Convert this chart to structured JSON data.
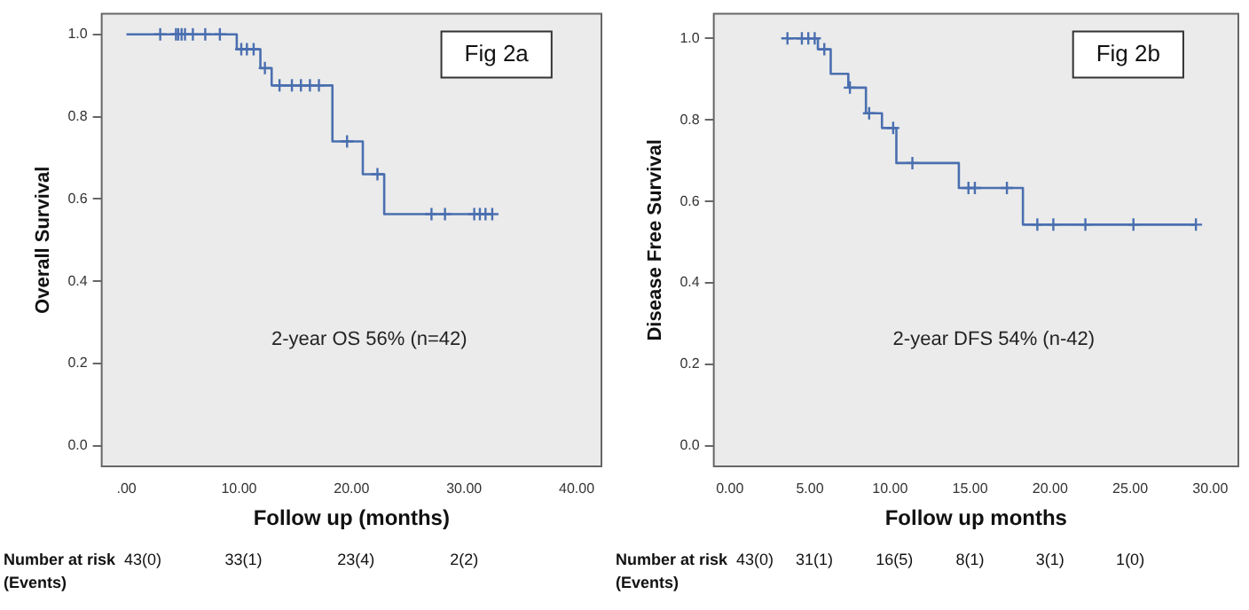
{
  "chart_data": [
    {
      "type": "step",
      "xlabel": "Follow up (months)",
      "ylabel": "Overall Survival",
      "annotations": [
        "Fig 2a",
        "2-year OS 56% (n=42)",
        "Number at risk",
        "(Events)",
        "43(0)",
        "33(1)",
        "23(4)",
        "2(2)"
      ],
      "series": [
        {
          "color": "#4a6fb0",
          "x": [
            0,
            9.8,
            11.9,
            12.9,
            18.3,
            21.0,
            22.9,
            32.5
          ],
          "values": [
            1.0,
            0.964,
            0.918,
            0.876,
            0.74,
            0.66,
            0.563,
            0.563
          ]
        },
        {
          "type": "scatter",
          "marker": "cross",
          "color": "#4a6fb0",
          "x": [
            3.0,
            4.4,
            4.6,
            4.9,
            5.2,
            5.9,
            7.0,
            8.3,
            10.2,
            10.7,
            11.3,
            12.3,
            13.6,
            14.7,
            15.5,
            16.3,
            17.1,
            19.6,
            22.3,
            27.1,
            28.3,
            30.9,
            31.4,
            31.9,
            32.5
          ],
          "values": [
            1.0,
            1.0,
            1.0,
            1.0,
            1.0,
            1.0,
            1.0,
            1.0,
            0.964,
            0.964,
            0.964,
            0.918,
            0.876,
            0.876,
            0.876,
            0.876,
            0.876,
            0.74,
            0.66,
            0.563,
            0.563,
            0.563,
            0.563,
            0.563,
            0.563
          ]
        }
      ],
      "xlim": [
        -2.2,
        42.2
      ],
      "ylim": [
        -0.05,
        1.05
      ],
      "xticks": [
        {
          "value": 0,
          "label": ".00"
        },
        {
          "value": 10,
          "label": "10.00"
        },
        {
          "value": 20,
          "label": "20.00"
        },
        {
          "value": 30,
          "label": "30.00"
        },
        {
          "value": 40,
          "label": "40.00"
        }
      ],
      "yticks": [
        {
          "value": 0,
          "label": "0.0"
        },
        {
          "value": 0.2,
          "label": "0.2"
        },
        {
          "value": 0.4,
          "label": "0.4"
        },
        {
          "value": 0.6,
          "label": "0.6"
        },
        {
          "value": 0.8,
          "label": "0.8"
        },
        {
          "value": 1,
          "label": "1.0"
        }
      ],
      "grid": false,
      "legend": false
    },
    {
      "type": "step",
      "xlabel": "Follow up months",
      "ylabel": "Disease Free Survival",
      "annotations": [
        "Fig 2b",
        "2-year DFS 54% (n-42)",
        "Number at risk",
        "(Events)",
        "43(0)",
        "31(1)",
        "16(5)",
        "8(1)",
        "3(1)",
        "1(0)"
      ],
      "series": [
        {
          "color": "#4a6fb0",
          "x": [
            3.6,
            5.5,
            6.3,
            7.4,
            8.5,
            9.5,
            10.4,
            14.3,
            18.3,
            29.1
          ],
          "values": [
            1.0,
            0.973,
            0.913,
            0.879,
            0.816,
            0.78,
            0.694,
            0.633,
            0.543,
            0.543
          ]
        },
        {
          "type": "scatter",
          "marker": "cross",
          "color": "#4a6fb0",
          "x": [
            3.6,
            4.5,
            4.9,
            5.3,
            5.9,
            7.5,
            8.7,
            10.2,
            11.4,
            14.9,
            15.3,
            17.3,
            19.2,
            20.2,
            22.2,
            25.2,
            29.1
          ],
          "values": [
            1.0,
            1.0,
            1.0,
            1.0,
            0.973,
            0.879,
            0.816,
            0.78,
            0.694,
            0.633,
            0.633,
            0.633,
            0.543,
            0.543,
            0.543,
            0.543,
            0.543
          ]
        }
      ],
      "xlim": [
        -1.0,
        31.75
      ],
      "ylim": [
        -0.05,
        1.06
      ],
      "xticks": [
        {
          "value": 0,
          "label": "0.00"
        },
        {
          "value": 5,
          "label": "5.00"
        },
        {
          "value": 10,
          "label": "10.00"
        },
        {
          "value": 15,
          "label": "15.00"
        },
        {
          "value": 20,
          "label": "20.00"
        },
        {
          "value": 25,
          "label": "25.00"
        },
        {
          "value": 30,
          "label": "30.00"
        }
      ],
      "yticks": [
        {
          "value": 0,
          "label": "0.0"
        },
        {
          "value": 0.2,
          "label": "0.2"
        },
        {
          "value": 0.4,
          "label": "0.4"
        },
        {
          "value": 0.6,
          "label": "0.6"
        },
        {
          "value": 0.8,
          "label": "0.8"
        },
        {
          "value": 1,
          "label": "1.0"
        }
      ],
      "grid": false,
      "legend": false
    }
  ]
}
